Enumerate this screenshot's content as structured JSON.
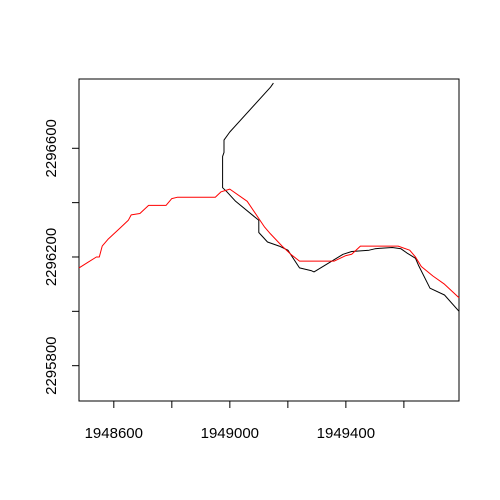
{
  "chart_data": {
    "type": "line",
    "xlim": [
      1948480,
      1949790
    ],
    "ylim": [
      2295670,
      2296855
    ],
    "x_ticks": [
      1948600,
      1949000,
      1949400
    ],
    "x_tick_labels": [
      "1948600",
      "1949000",
      "1949400"
    ],
    "x_minor_ticks": [
      1948800,
      1949200,
      1949600
    ],
    "y_ticks": [
      2295800,
      2296200,
      2296600
    ],
    "y_tick_labels": [
      "2295800",
      "2296200",
      "2296600"
    ],
    "y_minor_ticks": [
      2296000,
      2296400
    ],
    "grid": false,
    "series": [
      {
        "color": "#000000",
        "points": [
          [
            1949150,
            2296840
          ],
          [
            1949140,
            2296825
          ],
          [
            1949000,
            2296660
          ],
          [
            1948980,
            2296630
          ],
          [
            1948980,
            2296585
          ],
          [
            1948975,
            2296570
          ],
          [
            1948975,
            2296455
          ],
          [
            1948990,
            2296440
          ],
          [
            1949020,
            2296405
          ],
          [
            1949100,
            2296335
          ],
          [
            1949100,
            2296290
          ],
          [
            1949130,
            2296255
          ],
          [
            1949170,
            2296240
          ],
          [
            1949200,
            2296225
          ],
          [
            1949240,
            2296160
          ],
          [
            1949280,
            2296150
          ],
          [
            1949290,
            2296145
          ],
          [
            1949390,
            2296210
          ],
          [
            1949420,
            2296220
          ],
          [
            1949480,
            2296225
          ],
          [
            1949500,
            2296230
          ],
          [
            1949520,
            2296232
          ],
          [
            1949560,
            2296235
          ],
          [
            1949590,
            2296230
          ],
          [
            1949610,
            2296215
          ],
          [
            1949640,
            2296195
          ],
          [
            1949650,
            2296170
          ],
          [
            1949690,
            2296085
          ],
          [
            1949740,
            2296060
          ],
          [
            1949790,
            2296000
          ]
        ]
      },
      {
        "color": "#ff0000",
        "points": [
          [
            1948480,
            2296160
          ],
          [
            1948510,
            2296180
          ],
          [
            1948540,
            2296200
          ],
          [
            1948550,
            2296200
          ],
          [
            1948560,
            2296240
          ],
          [
            1948580,
            2296265
          ],
          [
            1948620,
            2296305
          ],
          [
            1948650,
            2296335
          ],
          [
            1948660,
            2296355
          ],
          [
            1948690,
            2296360
          ],
          [
            1948720,
            2296390
          ],
          [
            1948780,
            2296390
          ],
          [
            1948800,
            2296415
          ],
          [
            1948820,
            2296420
          ],
          [
            1948950,
            2296420
          ],
          [
            1948970,
            2296440
          ],
          [
            1949000,
            2296450
          ],
          [
            1949060,
            2296405
          ],
          [
            1949120,
            2296310
          ],
          [
            1949140,
            2296285
          ],
          [
            1949180,
            2296240
          ],
          [
            1949210,
            2296210
          ],
          [
            1949240,
            2296185
          ],
          [
            1949360,
            2296185
          ],
          [
            1949400,
            2296205
          ],
          [
            1949420,
            2296210
          ],
          [
            1949450,
            2296240
          ],
          [
            1949580,
            2296240
          ],
          [
            1949620,
            2296225
          ],
          [
            1949640,
            2296200
          ],
          [
            1949660,
            2296165
          ],
          [
            1949700,
            2296130
          ],
          [
            1949740,
            2296100
          ],
          [
            1949790,
            2296050
          ]
        ]
      }
    ]
  }
}
